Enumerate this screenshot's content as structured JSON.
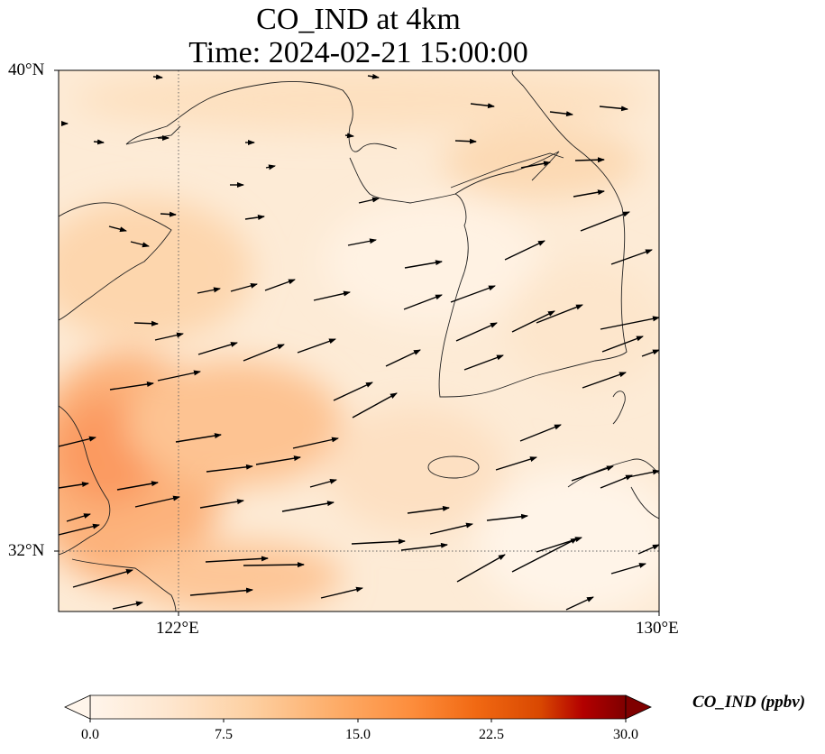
{
  "title": {
    "line1": "CO_IND at 4km",
    "line2": "Time: 2024-02-21 15:00:00"
  },
  "axes": {
    "lat_labels": [
      "40°N",
      "32°N"
    ],
    "lon_labels": [
      "122°E",
      "130°E"
    ],
    "lat_range": [
      31,
      40
    ],
    "lon_range": [
      120,
      130
    ]
  },
  "colorbar": {
    "label": "CO_IND (ppbv)",
    "ticks": [
      "0.0",
      "7.5",
      "15.0",
      "22.5",
      "30.0"
    ],
    "range": [
      0,
      30
    ],
    "colormap": [
      "#fff5eb",
      "#fdd9b4",
      "#fdae6b",
      "#f16913",
      "#d94801",
      "#a63603",
      "#7f0000"
    ],
    "extend": "both"
  },
  "map": {
    "projection": "PlateCarree",
    "gridlines": "dotted",
    "field": "CO_IND",
    "unit": "ppbv",
    "vectors": "wind"
  }
}
